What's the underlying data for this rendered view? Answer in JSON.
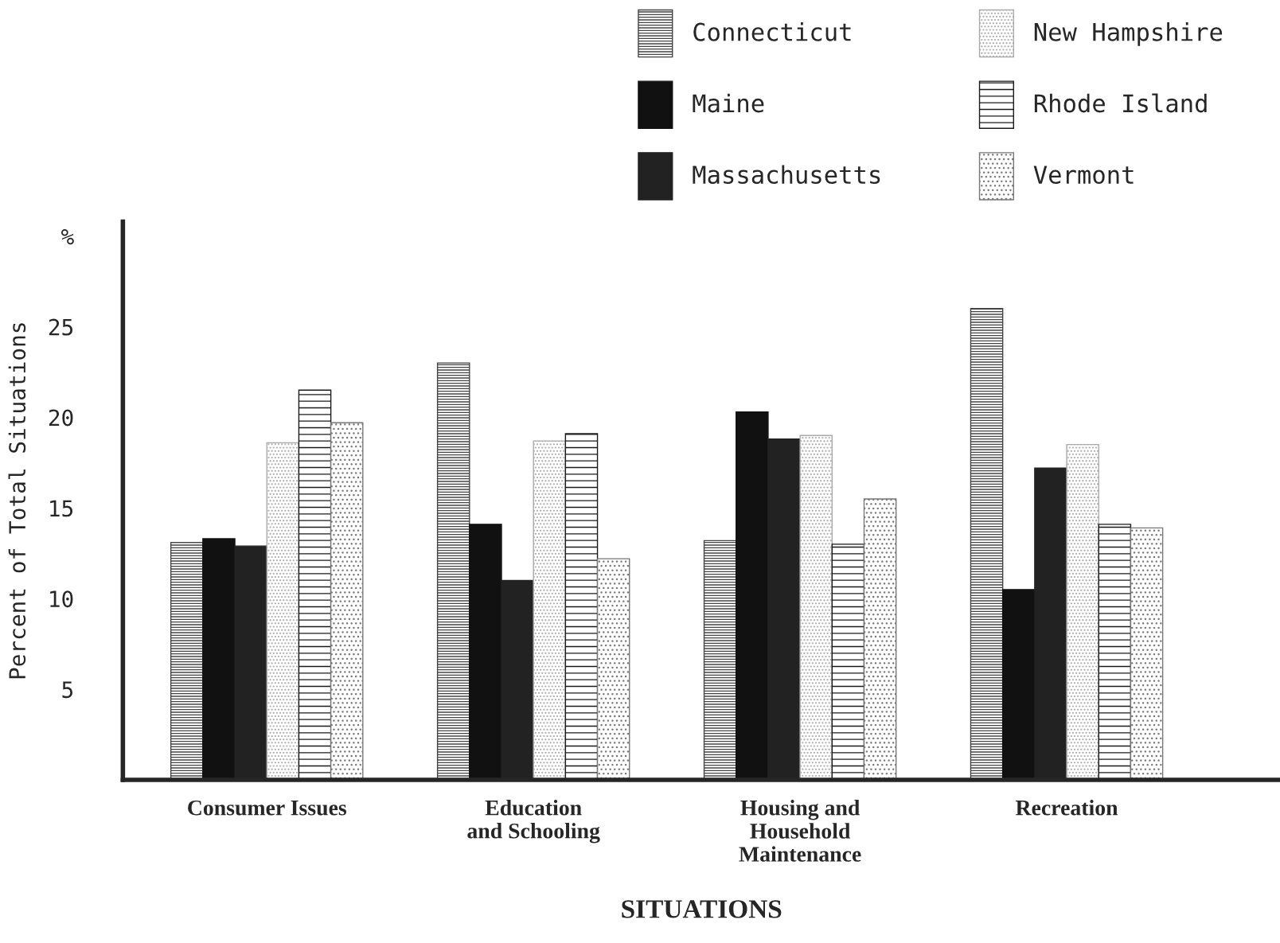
{
  "chart_data": {
    "type": "bar",
    "categories": [
      "Consumer Issues",
      "Education\nand Schooling",
      "Housing and\nHousehold\nMaintenance",
      "Recreation"
    ],
    "series": [
      {
        "name": "Connecticut",
        "color": "#444444",
        "values": [
          13.1,
          23.0,
          13.2,
          26.0
        ]
      },
      {
        "name": "Maine",
        "color": "#111111",
        "values": [
          13.3,
          14.1,
          20.3,
          10.5
        ]
      },
      {
        "name": "Massachusetts",
        "color": "#222222",
        "values": [
          12.9,
          11.0,
          18.8,
          17.2
        ]
      },
      {
        "name": "New Hampshire",
        "color": "#aaaaaa",
        "values": [
          18.6,
          18.7,
          19.0,
          18.5
        ]
      },
      {
        "name": "Rhode Island",
        "color": "#1a1a1a",
        "values": [
          21.5,
          19.1,
          13.0,
          14.1
        ]
      },
      {
        "name": "Vermont",
        "color": "#777777",
        "values": [
          19.7,
          12.2,
          15.5,
          13.9
        ]
      }
    ],
    "xlabel": "SITUATIONS",
    "ylabel": "Percent of Total Situations",
    "ylim": [
      0,
      30.8
    ],
    "yticks": [
      5,
      10,
      15,
      20,
      25,
      {
        "value": 30,
        "label": "%"
      }
    ],
    "legend": "top right",
    "grid": false
  }
}
